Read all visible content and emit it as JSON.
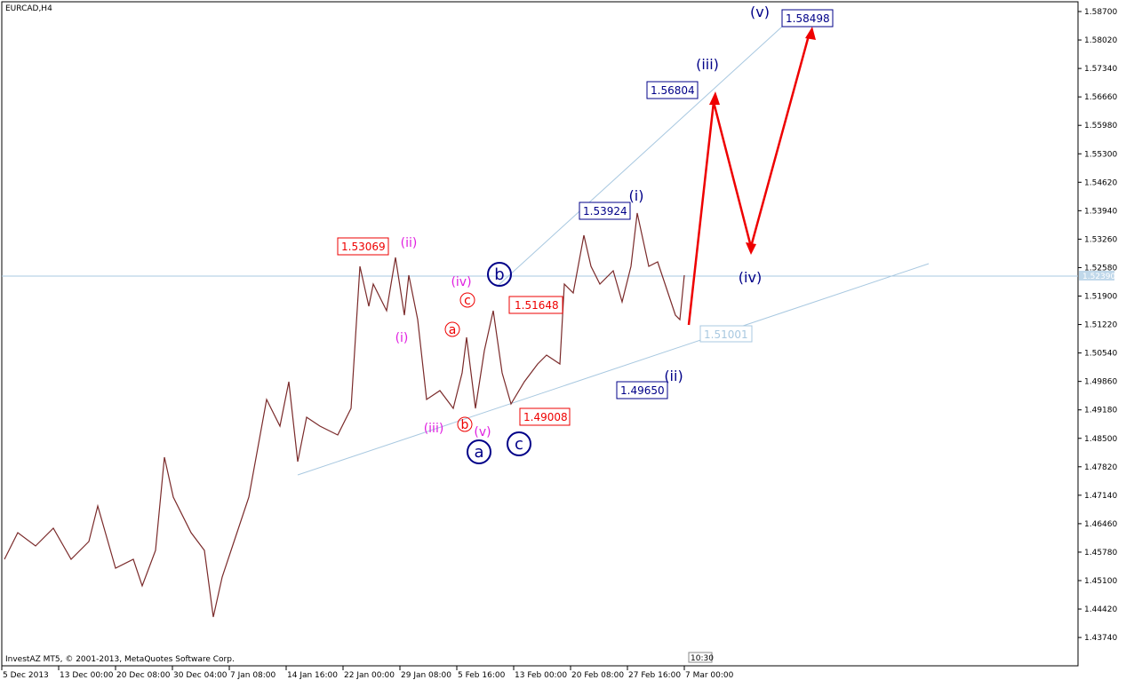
{
  "header": {
    "symbol": "EURCAD,H4"
  },
  "footer": {
    "copyright": "InvestAZ MT5, © 2001-2013, MetaQuotes Software Corp."
  },
  "price_axis": {
    "ticks": [
      "1.58700",
      "1.58020",
      "1.57340",
      "1.56660",
      "1.55980",
      "1.55300",
      "1.54620",
      "1.53940",
      "1.53260",
      "1.52580",
      "1.51900",
      "1.51220",
      "1.50540",
      "1.49860",
      "1.49180",
      "1.48500",
      "1.47820",
      "1.47140",
      "1.46460",
      "1.45780",
      "1.45100",
      "1.44420",
      "1.43740"
    ],
    "current": "1.52390"
  },
  "time_axis": {
    "labels": [
      "5 Dec 2013",
      "13 Dec 00:00",
      "20 Dec 08:00",
      "30 Dec 04:00",
      "7 Jan 08:00",
      "14 Jan 16:00",
      "22 Jan 00:00",
      "29 Jan 08:00",
      "5 Feb 16:00",
      "13 Feb 00:00",
      "20 Feb 08:00",
      "27 Feb 16:00",
      "7 Mar 00:00"
    ]
  },
  "price_boxes": [
    "1.53069",
    "1.51648",
    "1.49008",
    "1.53924",
    "1.56804",
    "1.58498",
    "1.49650",
    "1.51001"
  ],
  "minor_waves": [
    "(i)",
    "(ii)",
    "(iii)",
    "(iv)",
    "(v)",
    "a",
    "b",
    "c"
  ],
  "major_waves": [
    "a",
    "b",
    "c"
  ],
  "projection_waves": [
    "(i)",
    "(ii)",
    "(iii)",
    "(iv)",
    "(v)"
  ],
  "period_button": "10:30"
}
